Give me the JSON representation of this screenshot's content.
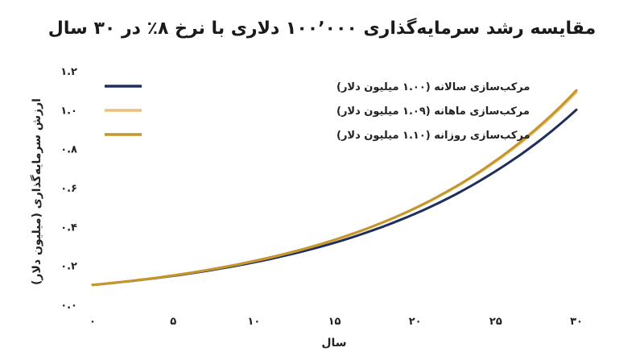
{
  "chart_data": {
    "type": "line",
    "title": "مقایسه رشد سرمایه‌گذاری ۱۰۰٬۰۰۰ دلاری با نرخ ۸٪ در ۳۰ سال",
    "xlabel": "سال",
    "ylabel": "ارزش سرمایه‌گذاری (میلیون دلار)",
    "xlim": [
      0,
      30
    ],
    "ylim": [
      0.0,
      1.2
    ],
    "x_ticks": [
      0,
      5,
      10,
      15,
      20,
      25,
      30
    ],
    "x_tick_labels": [
      "۰",
      "۵",
      "۱۰",
      "۱۵",
      "۲۰",
      "۲۵",
      "۳۰"
    ],
    "y_ticks": [
      0.0,
      0.2,
      0.4,
      0.6,
      0.8,
      1.0,
      1.2
    ],
    "y_tick_labels": [
      "۰.۰",
      "۰.۲",
      "۰.۴",
      "۰.۶",
      "۰.۸",
      "۱.۰",
      "۱.۲"
    ],
    "grid": false,
    "legend_position": "top-left",
    "x": [
      0,
      5,
      10,
      15,
      20,
      25,
      30
    ],
    "series": [
      {
        "name": "مرکب‌سازی سالانه (۱.۰۰ میلیون دلار)",
        "color": "#1f2f5c",
        "values": [
          0.1,
          0.147,
          0.216,
          0.317,
          0.466,
          0.685,
          1.0
        ]
      },
      {
        "name": "مرکب‌سازی ماهانه (۱.۰۹ میلیون دلار)",
        "color": "#ebc27a",
        "values": [
          0.1,
          0.149,
          0.222,
          0.331,
          0.493,
          0.734,
          1.09
        ]
      },
      {
        "name": "مرکب‌سازی روزانه (۱.۱۰ میلیون دلار)",
        "color": "#c4962b",
        "values": [
          0.1,
          0.149,
          0.223,
          0.332,
          0.495,
          0.739,
          1.1
        ]
      }
    ]
  }
}
